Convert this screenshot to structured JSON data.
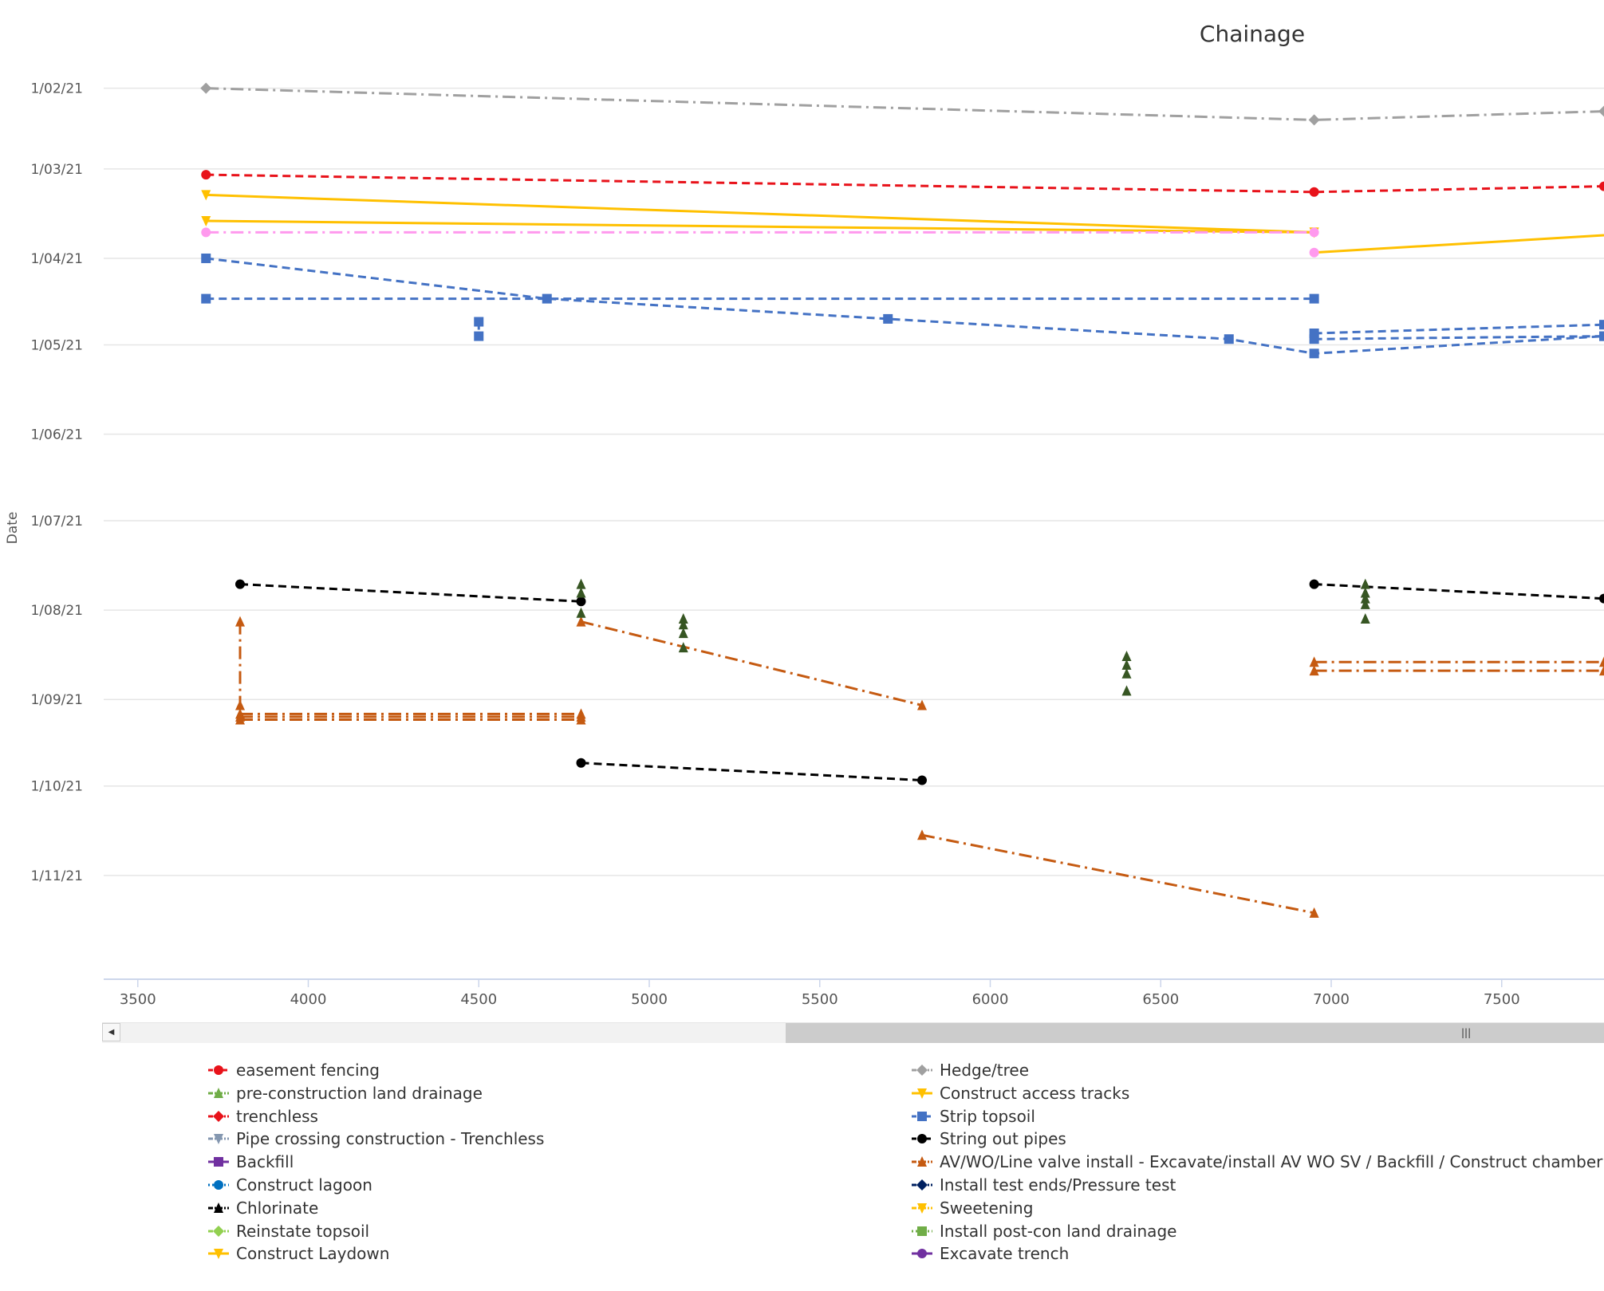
{
  "chart_data": {
    "type": "line",
    "title": "Chainage",
    "xlabel": "",
    "ylabel": "Date",
    "xlim": [
      3400,
      7800
    ],
    "ylim": [
      "2021-01-18",
      "2021-12-07"
    ],
    "x_ticks": [
      "3500",
      "4000",
      "4500",
      "5000",
      "5500",
      "6000",
      "6500",
      "7000",
      "7500"
    ],
    "y_ticks": [
      "1/02/21",
      "1/03/21",
      "1/04/21",
      "1/05/21",
      "1/06/21",
      "1/07/21",
      "1/08/21",
      "1/09/21",
      "1/10/21",
      "1/11/21"
    ],
    "y_tick_dates": [
      "2021-02-01",
      "2021-03-01",
      "2021-04-01",
      "2021-05-01",
      "2021-06-01",
      "2021-07-01",
      "2021-08-01",
      "2021-09-01",
      "2021-10-01",
      "2021-11-01"
    ],
    "grid": true,
    "legend_position": "bottom",
    "legend": [
      {
        "name": "easement fencing",
        "color": "#e8121a",
        "marker": "circle",
        "dash": "dashed"
      },
      {
        "name": "Hedge/tree",
        "color": "#a0a0a0",
        "marker": "diamond",
        "dash": "dashdot"
      },
      {
        "name": "pre-construction land drainage",
        "color": "#70ad47",
        "marker": "triangle",
        "dash": "dashdot"
      },
      {
        "name": "Construct access tracks",
        "color": "#ffc000",
        "marker": "triangle-down",
        "dash": "solid"
      },
      {
        "name": "trenchless",
        "color": "#e8121a",
        "marker": "diamond",
        "dash": "dashdot"
      },
      {
        "name": "Strip topsoil",
        "color": "#4472c4",
        "marker": "square",
        "dash": "dashed"
      },
      {
        "name": "Pipe crossing construction - Trenchless",
        "color": "#8497b0",
        "marker": "triangle-down",
        "dash": "dashdot"
      },
      {
        "name": "String out pipes",
        "color": "#000000",
        "marker": "circle",
        "dash": "dashed"
      },
      {
        "name": "Backfill",
        "color": "#7030a0",
        "marker": "square",
        "dash": "solid"
      },
      {
        "name": "AV/WO/Line valve install - Excavate/install AV WO SV / Backfill / Construct chamber",
        "color": "#c55a11",
        "marker": "triangle",
        "dash": "dashdot"
      },
      {
        "name": "Construct lagoon",
        "color": "#0070c0",
        "marker": "circle",
        "dash": "dotted"
      },
      {
        "name": "Install test ends/Pressure test",
        "color": "#002060",
        "marker": "diamond",
        "dash": "dashdot"
      },
      {
        "name": "Chlorinate",
        "color": "#000000",
        "marker": "triangle",
        "dash": "dashdot"
      },
      {
        "name": "Sweetening",
        "color": "#ffc000",
        "marker": "triangle-down",
        "dash": "dashdot"
      },
      {
        "name": "Reinstate topsoil",
        "color": "#92d050",
        "marker": "diamond",
        "dash": "dashdot"
      },
      {
        "name": "Install post-con land drainage",
        "color": "#70ad47",
        "marker": "square",
        "dash": "dotted"
      },
      {
        "name": "Construct Laydown",
        "color": "#ffc000",
        "marker": "triangle-down",
        "dash": "solid"
      },
      {
        "name": "Excavate trench",
        "color": "#7030a0",
        "marker": "circle",
        "dash": "solid"
      }
    ],
    "series": [
      {
        "style_index": 1,
        "color": "#a0a0a0",
        "marker": "diamond",
        "dash": "dashdot",
        "width": 3,
        "points": [
          {
            "x": 3700,
            "y": "2021-02-01"
          },
          {
            "x": 6950,
            "y": "2021-02-12"
          },
          {
            "x": 7800,
            "y": "2021-02-09"
          }
        ]
      },
      {
        "style_index": 0,
        "color": "#e8121a",
        "marker": "circle",
        "dash": "dashed",
        "width": 3,
        "points": [
          {
            "x": 3700,
            "y": "2021-03-03"
          },
          {
            "x": 6950,
            "y": "2021-03-09"
          },
          {
            "x": 7800,
            "y": "2021-03-07"
          }
        ]
      },
      {
        "style_index": 3,
        "color": "#ffc000",
        "marker": "triangle-down",
        "dash": "solid",
        "width": 3,
        "points": [
          {
            "x": 3700,
            "y": "2021-03-10"
          },
          {
            "x": 6950,
            "y": "2021-03-23"
          }
        ]
      },
      {
        "style_index": 3,
        "color": "#ffc000",
        "marker": "triangle-down",
        "dash": "solid",
        "width": 3,
        "points": [
          {
            "x": 3700,
            "y": "2021-03-19"
          },
          {
            "x": 6950,
            "y": "2021-03-23"
          }
        ]
      },
      {
        "style_index": 3,
        "color": "#ffc000",
        "marker": "none",
        "dash": "solid",
        "width": 3,
        "points": [
          {
            "x": 6950,
            "y": "2021-03-30"
          },
          {
            "x": 7800,
            "y": "2021-03-24"
          }
        ]
      },
      {
        "style_index": 13,
        "color": "#ff99ee",
        "marker": "circle",
        "dash": "dashdot",
        "width": 3,
        "points": [
          {
            "x": 3700,
            "y": "2021-03-23"
          },
          {
            "x": 6950,
            "y": "2021-03-23"
          }
        ]
      },
      {
        "style_index": 13,
        "color": "#ff99ee",
        "marker": "circle",
        "dash": "dashdot",
        "width": 3,
        "points": [
          {
            "x": 6950,
            "y": "2021-03-30"
          }
        ]
      },
      {
        "style_index": 5,
        "color": "#4472c4",
        "marker": "square",
        "dash": "dashed",
        "width": 3,
        "points": [
          {
            "x": 3700,
            "y": "2021-04-01"
          },
          {
            "x": 4700,
            "y": "2021-04-15"
          },
          {
            "x": 5700,
            "y": "2021-04-22"
          },
          {
            "x": 6700,
            "y": "2021-04-29"
          },
          {
            "x": 6950,
            "y": "2021-05-04"
          },
          {
            "x": 7800,
            "y": "2021-04-28"
          }
        ]
      },
      {
        "style_index": 5,
        "color": "#4472c4",
        "marker": "square",
        "dash": "dashed",
        "width": 3,
        "points": [
          {
            "x": 3700,
            "y": "2021-04-15"
          },
          {
            "x": 6950,
            "y": "2021-04-15"
          }
        ]
      },
      {
        "style_index": 5,
        "color": "#4472c4",
        "marker": "square",
        "dash": "dashed",
        "width": 3,
        "points": [
          {
            "x": 4500,
            "y": "2021-04-23"
          },
          {
            "x": 4500,
            "y": "2021-04-28"
          }
        ]
      },
      {
        "style_index": 5,
        "color": "#4472c4",
        "marker": "square",
        "dash": "dashed",
        "width": 3,
        "points": [
          {
            "x": 6950,
            "y": "2021-04-27"
          },
          {
            "x": 7800,
            "y": "2021-04-24"
          }
        ]
      },
      {
        "style_index": 5,
        "color": "#4472c4",
        "marker": "square",
        "dash": "dashed",
        "width": 3,
        "points": [
          {
            "x": 6950,
            "y": "2021-04-29"
          },
          {
            "x": 7800,
            "y": "2021-04-28"
          }
        ]
      },
      {
        "style_index": 7,
        "color": "#000000",
        "marker": "circle",
        "dash": "dashed",
        "width": 3,
        "points": [
          {
            "x": 3800,
            "y": "2021-07-23"
          },
          {
            "x": 4800,
            "y": "2021-07-29"
          }
        ]
      },
      {
        "style_index": 7,
        "color": "#000000",
        "marker": "circle",
        "dash": "dashed",
        "width": 3,
        "points": [
          {
            "x": 6950,
            "y": "2021-07-23"
          },
          {
            "x": 7800,
            "y": "2021-07-28"
          }
        ]
      },
      {
        "style_index": 7,
        "color": "#000000",
        "marker": "circle",
        "dash": "dashed",
        "width": 3,
        "points": [
          {
            "x": 4800,
            "y": "2021-09-23"
          },
          {
            "x": 5800,
            "y": "2021-09-29"
          }
        ]
      },
      {
        "style_index": 9,
        "color": "#c55a11",
        "marker": "triangle",
        "dash": "dashdot",
        "width": 3,
        "points": [
          {
            "x": 3800,
            "y": "2021-08-05"
          },
          {
            "x": 3800,
            "y": "2021-09-03"
          }
        ]
      },
      {
        "style_index": 9,
        "color": "#c55a11",
        "marker": "triangle",
        "dash": "dashdot",
        "width": 3,
        "points": [
          {
            "x": 3800,
            "y": "2021-09-06"
          },
          {
            "x": 4800,
            "y": "2021-09-06"
          }
        ]
      },
      {
        "style_index": 9,
        "color": "#c55a11",
        "marker": "triangle",
        "dash": "dashdot",
        "width": 3,
        "points": [
          {
            "x": 3800,
            "y": "2021-09-07"
          },
          {
            "x": 4800,
            "y": "2021-09-07"
          }
        ]
      },
      {
        "style_index": 9,
        "color": "#c55a11",
        "marker": "triangle",
        "dash": "dashdot",
        "width": 3,
        "points": [
          {
            "x": 3800,
            "y": "2021-09-08"
          },
          {
            "x": 4800,
            "y": "2021-09-08"
          }
        ]
      },
      {
        "style_index": 9,
        "color": "#c55a11",
        "marker": "triangle",
        "dash": "dashdot",
        "width": 3,
        "points": [
          {
            "x": 4800,
            "y": "2021-08-05"
          },
          {
            "x": 5800,
            "y": "2021-09-03"
          }
        ]
      },
      {
        "style_index": 9,
        "color": "#c55a11",
        "marker": "triangle",
        "dash": "dashdot",
        "width": 3,
        "points": [
          {
            "x": 6950,
            "y": "2021-08-19"
          },
          {
            "x": 7800,
            "y": "2021-08-19"
          }
        ]
      },
      {
        "style_index": 9,
        "color": "#c55a11",
        "marker": "triangle",
        "dash": "dashdot",
        "width": 3,
        "points": [
          {
            "x": 6950,
            "y": "2021-08-22"
          },
          {
            "x": 7800,
            "y": "2021-08-22"
          }
        ]
      },
      {
        "style_index": 9,
        "color": "#c55a11",
        "marker": "triangle",
        "dash": "dashdot",
        "width": 3,
        "points": [
          {
            "x": 5800,
            "y": "2021-10-18"
          },
          {
            "x": 6950,
            "y": "2021-11-14"
          }
        ]
      },
      {
        "style_index": 2,
        "color": "#375623",
        "marker": "triangle",
        "dash": "none",
        "width": 0,
        "points": [
          {
            "x": 4800,
            "y": "2021-07-23"
          },
          {
            "x": 4800,
            "y": "2021-07-26"
          },
          {
            "x": 4800,
            "y": "2021-08-02"
          },
          {
            "x": 5100,
            "y": "2021-08-04"
          },
          {
            "x": 5100,
            "y": "2021-08-06"
          },
          {
            "x": 5100,
            "y": "2021-08-09"
          },
          {
            "x": 5100,
            "y": "2021-08-14"
          },
          {
            "x": 6400,
            "y": "2021-08-17"
          },
          {
            "x": 6400,
            "y": "2021-08-20"
          },
          {
            "x": 6400,
            "y": "2021-08-23"
          },
          {
            "x": 6400,
            "y": "2021-08-29"
          },
          {
            "x": 7100,
            "y": "2021-07-23"
          },
          {
            "x": 7100,
            "y": "2021-07-26"
          },
          {
            "x": 7100,
            "y": "2021-07-28"
          },
          {
            "x": 7100,
            "y": "2021-07-30"
          },
          {
            "x": 7100,
            "y": "2021-08-04"
          }
        ]
      }
    ]
  }
}
